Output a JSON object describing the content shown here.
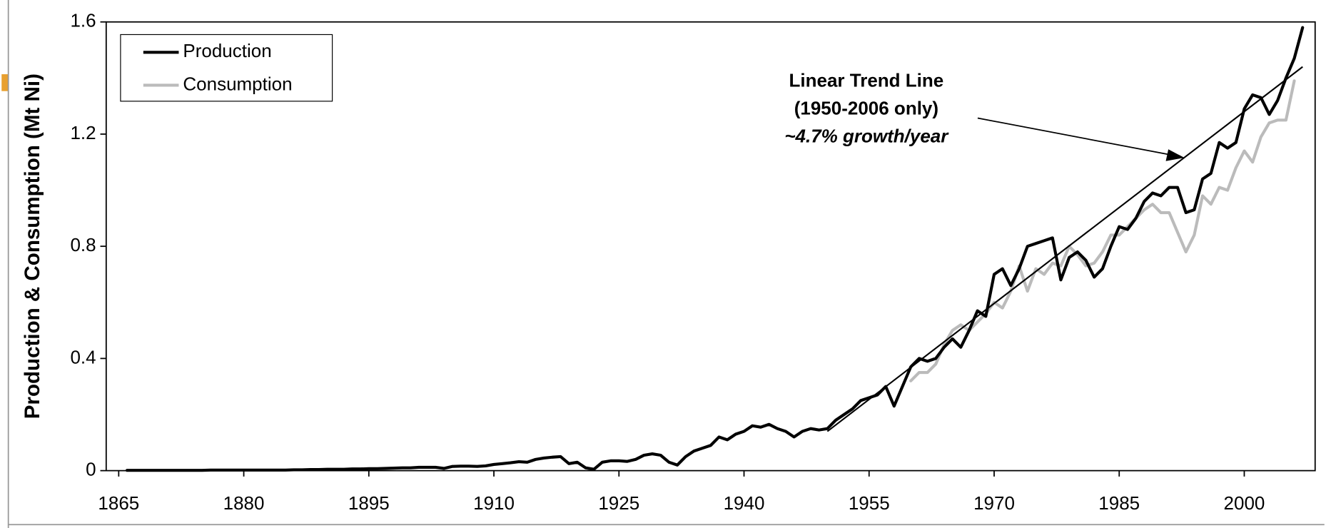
{
  "chart_data": {
    "type": "line",
    "ylabel": "Production & Consumption (Mt Ni)",
    "xlim": [
      1863.5,
      2008.5
    ],
    "xticks": [
      1865,
      1880,
      1895,
      1910,
      1925,
      1940,
      1955,
      1970,
      1985,
      2000
    ],
    "ylim": [
      0,
      1.6
    ],
    "yticks": [
      0,
      0.4,
      0.8,
      1.2,
      1.6
    ],
    "legend": "top-left",
    "annotations": [
      "Linear Trend Line",
      "(1950-2006 only)",
      "~4.7% growth/year"
    ],
    "series": [
      {
        "name": "Production",
        "color": "#000000",
        "x": [
          1866,
          1867,
          1868,
          1869,
          1870,
          1871,
          1872,
          1873,
          1874,
          1875,
          1876,
          1877,
          1878,
          1879,
          1880,
          1881,
          1882,
          1883,
          1884,
          1885,
          1886,
          1887,
          1888,
          1889,
          1890,
          1891,
          1892,
          1893,
          1894,
          1895,
          1896,
          1897,
          1898,
          1899,
          1900,
          1901,
          1902,
          1903,
          1904,
          1905,
          1906,
          1907,
          1908,
          1909,
          1910,
          1911,
          1912,
          1913,
          1914,
          1915,
          1916,
          1917,
          1918,
          1919,
          1920,
          1921,
          1922,
          1923,
          1924,
          1925,
          1926,
          1927,
          1928,
          1929,
          1930,
          1931,
          1932,
          1933,
          1934,
          1935,
          1936,
          1937,
          1938,
          1939,
          1940,
          1941,
          1942,
          1943,
          1944,
          1945,
          1946,
          1947,
          1948,
          1949,
          1950,
          1951,
          1952,
          1953,
          1954,
          1955,
          1956,
          1957,
          1958,
          1959,
          1960,
          1961,
          1962,
          1963,
          1964,
          1965,
          1966,
          1967,
          1968,
          1969,
          1970,
          1971,
          1972,
          1973,
          1974,
          1975,
          1976,
          1977,
          1978,
          1979,
          1980,
          1981,
          1982,
          1983,
          1984,
          1985,
          1986,
          1987,
          1988,
          1989,
          1990,
          1991,
          1992,
          1993,
          1994,
          1995,
          1996,
          1997,
          1998,
          1999,
          2000,
          2001,
          2002,
          2003,
          2004,
          2005,
          2006,
          2007
        ],
        "values": [
          0.001,
          0.001,
          0.001,
          0.001,
          0.001,
          0.001,
          0.001,
          0.001,
          0.001,
          0.001,
          0.002,
          0.002,
          0.002,
          0.002,
          0.002,
          0.002,
          0.002,
          0.002,
          0.002,
          0.002,
          0.003,
          0.003,
          0.004,
          0.004,
          0.005,
          0.005,
          0.005,
          0.006,
          0.006,
          0.007,
          0.007,
          0.008,
          0.009,
          0.01,
          0.01,
          0.012,
          0.012,
          0.012,
          0.008,
          0.015,
          0.016,
          0.016,
          0.015,
          0.017,
          0.022,
          0.025,
          0.028,
          0.032,
          0.03,
          0.04,
          0.045,
          0.048,
          0.05,
          0.025,
          0.03,
          0.01,
          0.005,
          0.03,
          0.035,
          0.035,
          0.033,
          0.04,
          0.055,
          0.06,
          0.055,
          0.03,
          0.02,
          0.05,
          0.07,
          0.08,
          0.09,
          0.12,
          0.11,
          0.13,
          0.14,
          0.16,
          0.155,
          0.165,
          0.15,
          0.14,
          0.12,
          0.14,
          0.15,
          0.145,
          0.15,
          0.18,
          0.2,
          0.22,
          0.25,
          0.26,
          0.27,
          0.3,
          0.23,
          0.3,
          0.37,
          0.4,
          0.39,
          0.4,
          0.44,
          0.47,
          0.44,
          0.5,
          0.57,
          0.55,
          0.7,
          0.72,
          0.66,
          0.72,
          0.8,
          0.81,
          0.82,
          0.83,
          0.68,
          0.76,
          0.78,
          0.75,
          0.69,
          0.72,
          0.8,
          0.87,
          0.86,
          0.9,
          0.96,
          0.99,
          0.98,
          1.01,
          1.01,
          0.92,
          0.93,
          1.04,
          1.06,
          1.17,
          1.15,
          1.17,
          1.29,
          1.34,
          1.33,
          1.27,
          1.32,
          1.4,
          1.47,
          1.58
        ]
      },
      {
        "name": "Consumption",
        "color": "#bbbbbb",
        "x": [
          1960,
          1961,
          1962,
          1963,
          1964,
          1965,
          1966,
          1967,
          1968,
          1969,
          1970,
          1971,
          1972,
          1973,
          1974,
          1975,
          1976,
          1977,
          1978,
          1979,
          1980,
          1981,
          1982,
          1983,
          1984,
          1985,
          1986,
          1987,
          1988,
          1989,
          1990,
          1991,
          1992,
          1993,
          1994,
          1995,
          1996,
          1997,
          1998,
          1999,
          2000,
          2001,
          2002,
          2003,
          2004,
          2005,
          2006
        ],
        "values": [
          0.32,
          0.35,
          0.35,
          0.38,
          0.45,
          0.5,
          0.52,
          0.5,
          0.53,
          0.56,
          0.6,
          0.58,
          0.64,
          0.73,
          0.64,
          0.72,
          0.7,
          0.74,
          0.73,
          0.8,
          0.77,
          0.73,
          0.74,
          0.78,
          0.84,
          0.84,
          0.87,
          0.9,
          0.93,
          0.95,
          0.92,
          0.92,
          0.85,
          0.78,
          0.84,
          0.98,
          0.95,
          1.01,
          1.0,
          1.08,
          1.14,
          1.1,
          1.19,
          1.24,
          1.25,
          1.25,
          1.39
        ]
      }
    ],
    "trend_line": {
      "color": "#000000",
      "x": [
        1950,
        2007
      ],
      "values": [
        0.14,
        1.44
      ]
    }
  }
}
